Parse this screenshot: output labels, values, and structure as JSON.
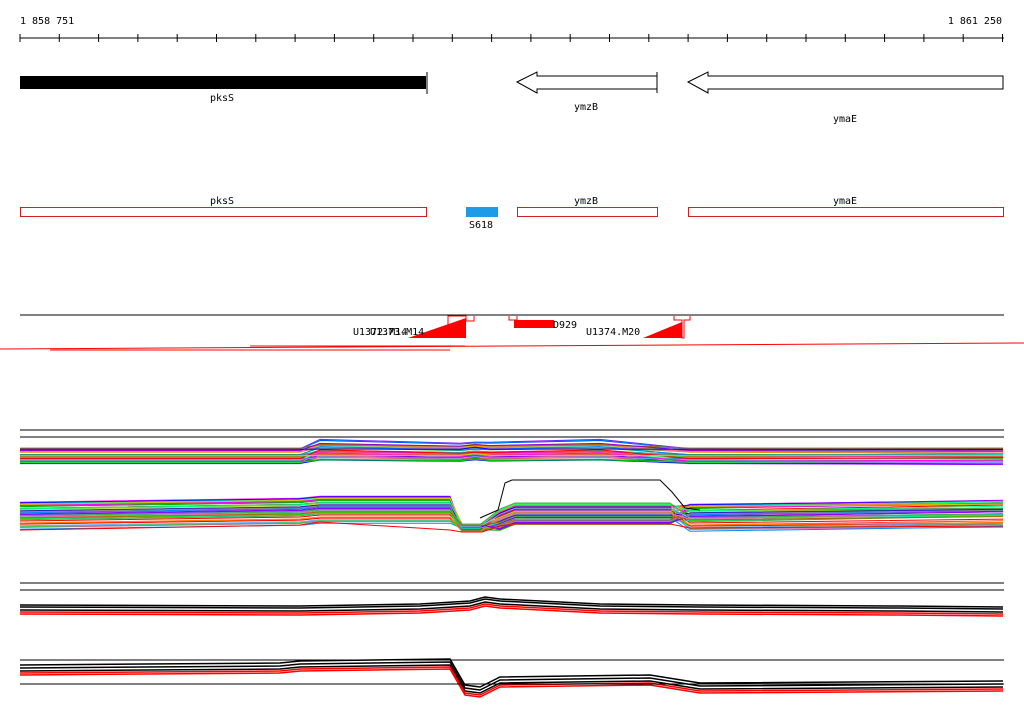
{
  "ruler": {
    "start_label": "1 858 751",
    "end_label": "1 861 250"
  },
  "genes": [
    {
      "name": "pksS",
      "strand": "+",
      "style": "solid"
    },
    {
      "name": "ymzB",
      "strand": "-",
      "style": "arrow"
    },
    {
      "name": "ymaE",
      "strand": "-",
      "style": "arrow"
    }
  ],
  "annotation_track": {
    "boxes": [
      {
        "name": "pksS"
      },
      {
        "name": "ymzB"
      },
      {
        "name": "ymaE"
      }
    ],
    "feature": {
      "name": "S618",
      "color": "#1e9be6"
    }
  },
  "transcription_track": {
    "labels": [
      "U1372.M14",
      "U1373.M14",
      "D929",
      "U1374.M20"
    ],
    "mark_color": "#ff0000"
  },
  "colors": {
    "accent_red": "#ff0000",
    "feature_blue": "#1e9be6",
    "box_outline": "#cc2222"
  }
}
